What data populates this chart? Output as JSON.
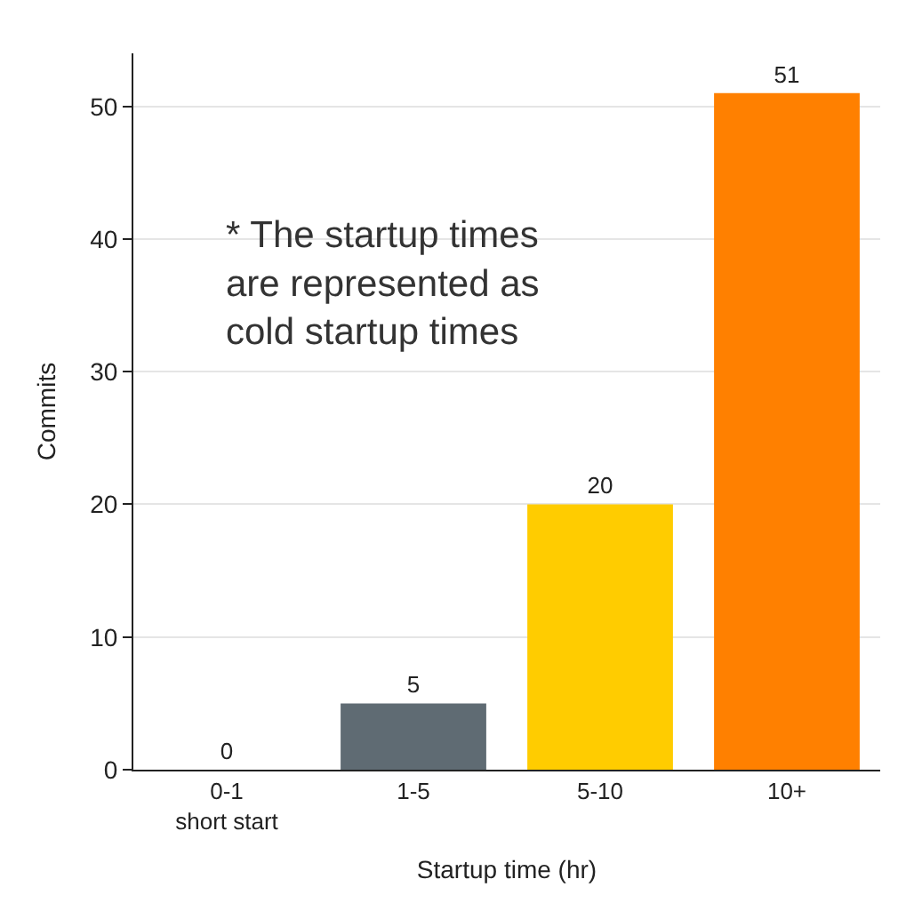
{
  "chart_data": {
    "type": "bar",
    "categories": [
      "0-1\nshort start",
      "1-5",
      "5-10",
      "10+"
    ],
    "values": [
      0,
      5,
      20,
      51
    ],
    "colors": [
      "#5f6b73",
      "#5f6b73",
      "#ffcc00",
      "#ff8000"
    ],
    "xlabel": "Startup time (hr)",
    "ylabel": "Commits",
    "ylim": [
      0,
      54
    ],
    "yticks": [
      0,
      10,
      20,
      30,
      40,
      50
    ],
    "grid": "y",
    "data_labels": true,
    "annotations": [
      "* The startup times\nare represented as\ncold startup times"
    ]
  }
}
